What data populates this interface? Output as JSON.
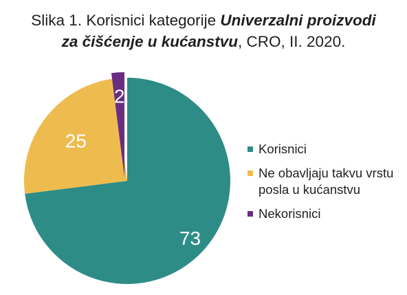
{
  "title": {
    "part1": "Slika 1. Korisnici kategorije ",
    "part2": "Univerzalni proizvodi",
    "part3": "za čišćenje u kućanstvu",
    "part4": ", CRO, II. 2020."
  },
  "chart_data": {
    "type": "pie",
    "title": "Slika 1. Korisnici kategorije Univerzalni proizvodi za čišćenje u kućanstvu, CRO, II. 2020.",
    "start_angle_deg": 0,
    "direction": "clockwise",
    "slices": [
      {
        "label": "Korisnici",
        "value": 73,
        "color": "#2e8c87"
      },
      {
        "label": "Ne obavljaju takvu vrstu posla u kućanstvu",
        "value": 25,
        "color": "#eebc4e"
      },
      {
        "label": "Nekorisnici",
        "value": 2,
        "color": "#6b2d82"
      }
    ],
    "data_labels": [
      "73",
      "25",
      "2"
    ],
    "legend_position": "right",
    "legend": {
      "items": [
        {
          "text": "Korisnici",
          "color": "#2e8c87"
        },
        {
          "text": "Ne obavljaju takvu vrstu posla u kućanstvu",
          "color": "#eebc4e"
        },
        {
          "text": "Nekorisnici",
          "color": "#6b2d82"
        }
      ]
    }
  }
}
